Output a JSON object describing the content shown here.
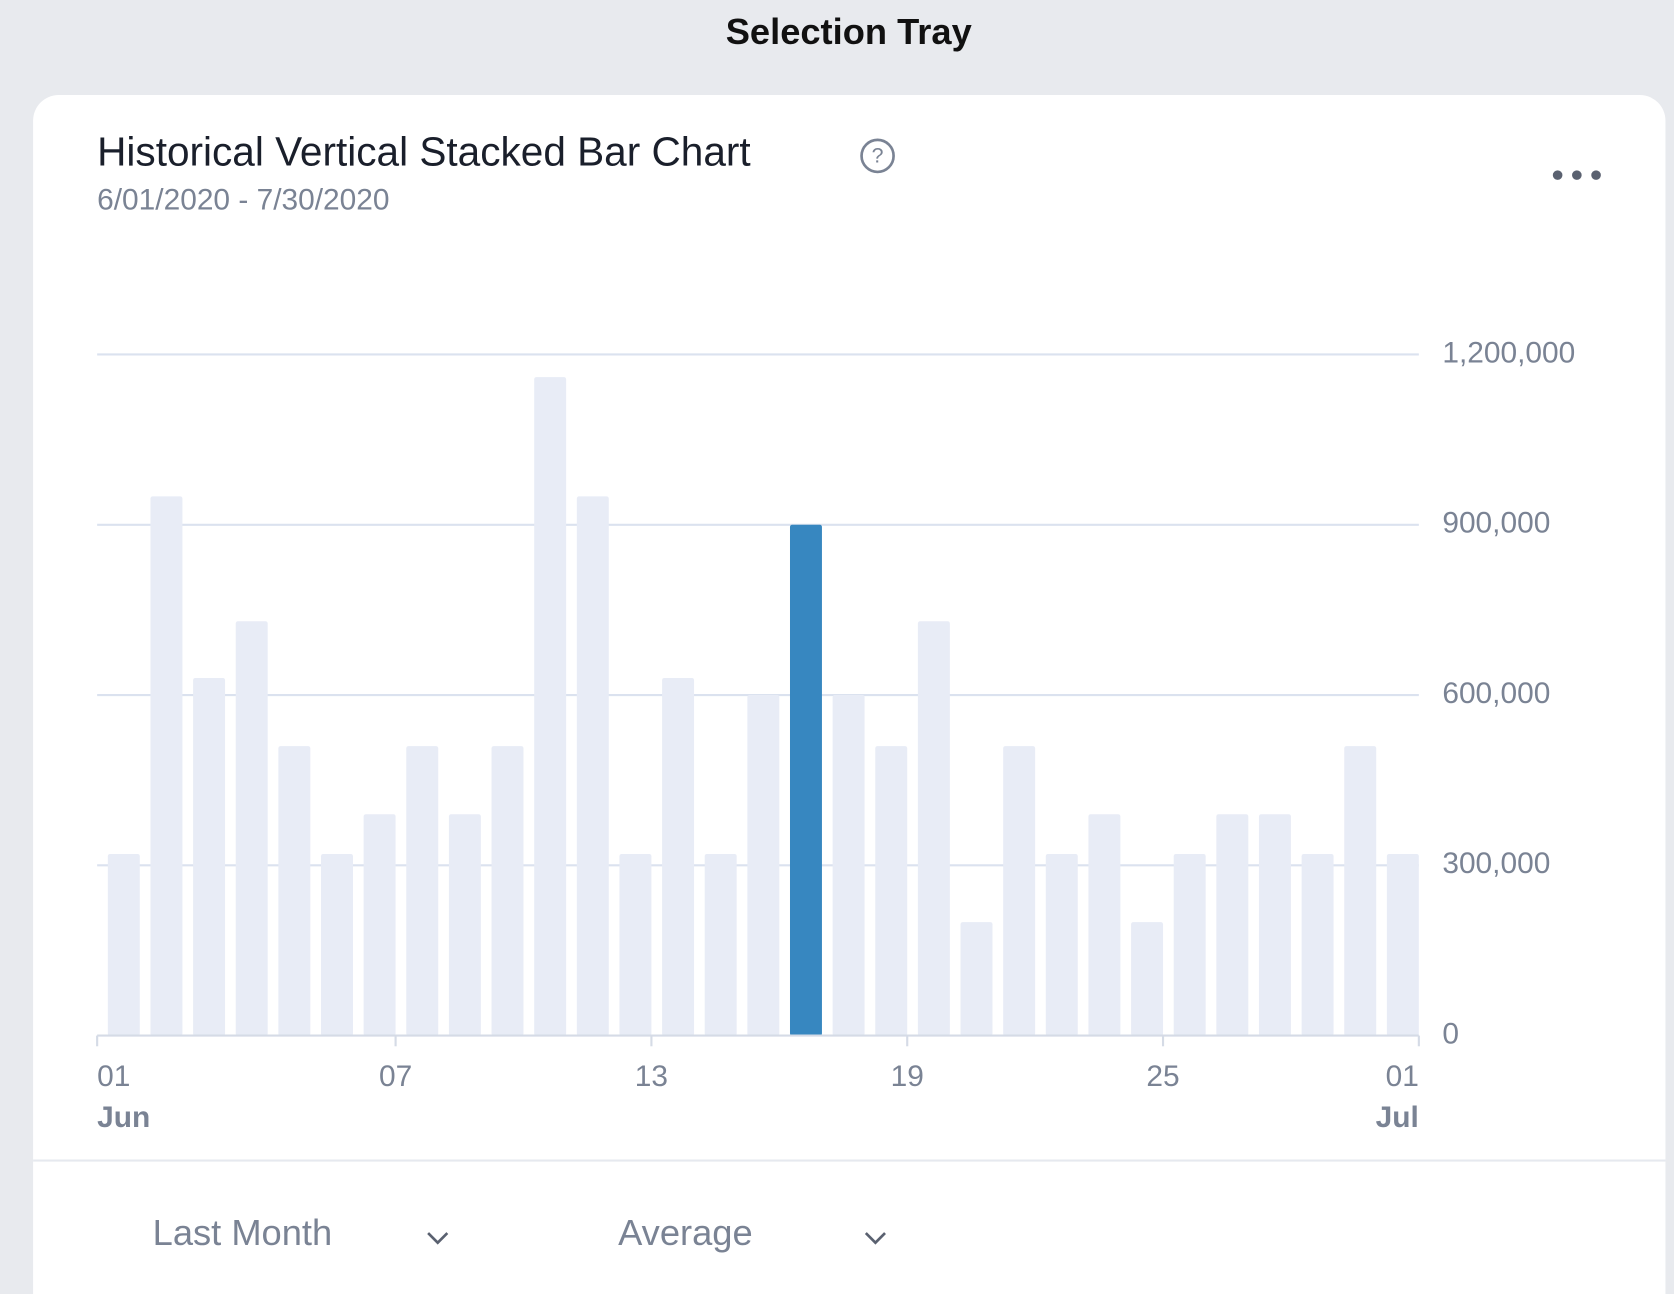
{
  "header": {
    "title": "Selection Tray"
  },
  "card": {
    "title": "Historical Vertical Stacked Bar Chart",
    "subtitle": "6/01/2020 - 7/30/2020"
  },
  "chart_data": {
    "type": "bar",
    "categories": [
      "01",
      null,
      null,
      null,
      null,
      null,
      "07",
      null,
      null,
      null,
      null,
      null,
      "13",
      null,
      null,
      null,
      null,
      null,
      "19",
      null,
      null,
      null,
      null,
      null,
      "25",
      null,
      null,
      null,
      null,
      null,
      "01"
    ],
    "month_labels": [
      "Jun",
      null,
      null,
      null,
      null,
      null,
      null,
      null,
      null,
      null,
      null,
      null,
      null,
      null,
      null,
      null,
      null,
      null,
      null,
      null,
      null,
      null,
      null,
      null,
      null,
      null,
      null,
      null,
      null,
      null,
      "Jul"
    ],
    "values": [
      320000,
      950000,
      630000,
      730000,
      510000,
      320000,
      390000,
      510000,
      390000,
      510000,
      1160000,
      950000,
      320000,
      630000,
      320000,
      600000,
      900000,
      600000,
      510000,
      730000,
      200000,
      510000,
      320000,
      390000,
      200000,
      320000,
      390000,
      390000,
      320000,
      510000,
      320000
    ],
    "colors": [
      "#e8ecf6",
      "#e8ecf6",
      "#e8ecf6",
      "#e8ecf6",
      "#e8ecf6",
      "#e8ecf6",
      "#e8ecf6",
      "#e8ecf6",
      "#e8ecf6",
      "#e8ecf6",
      "#e8ecf6",
      "#e8ecf6",
      "#e8ecf6",
      "#e8ecf6",
      "#e8ecf6",
      "#e8ecf6",
      "#3787c0",
      "#e8ecf6",
      "#e8ecf6",
      "#e8ecf6",
      "#e8ecf6",
      "#e8ecf6",
      "#e8ecf6",
      "#e8ecf6",
      "#e8ecf6",
      "#e8ecf6",
      "#e8ecf6",
      "#e8ecf6",
      "#e8ecf6",
      "#e8ecf6",
      "#e8ecf6"
    ],
    "ylim": [
      0,
      1200000
    ],
    "yticks": [
      0,
      {
        "value": 300000,
        "label": "300,000"
      },
      {
        "value": 600000,
        "label": "600,000"
      },
      {
        "value": 900000,
        "label": "900,000"
      },
      {
        "value": 1200000,
        "label": "1,200,000"
      }
    ],
    "grid": true,
    "y_axis_side": "right"
  },
  "controls": {
    "period": "Last Month",
    "aggregation": "Average"
  }
}
